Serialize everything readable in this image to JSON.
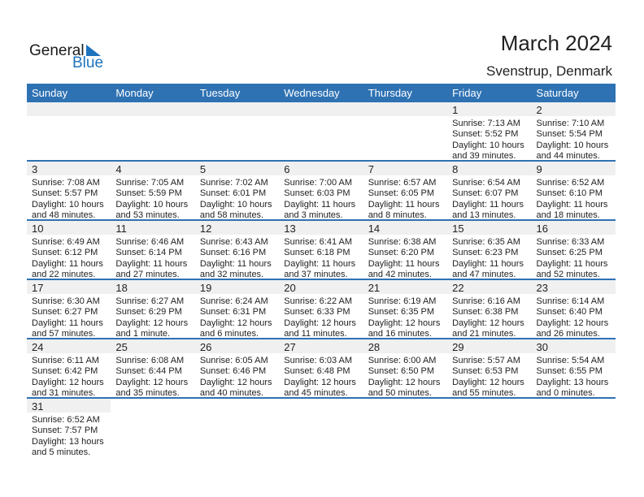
{
  "logo": {
    "general": "General",
    "blue": "Blue"
  },
  "title": "March 2024",
  "location": "Svenstrup, Denmark",
  "colors": {
    "header": "#2e72b3",
    "strip": "#f0f0f0",
    "brand": "#1e73be"
  },
  "weekdays": [
    "Sunday",
    "Monday",
    "Tuesday",
    "Wednesday",
    "Thursday",
    "Friday",
    "Saturday"
  ],
  "weeks": [
    [
      null,
      null,
      null,
      null,
      null,
      {
        "day": "1",
        "sunrise": "Sunrise: 7:13 AM",
        "sunset": "Sunset: 5:52 PM",
        "daylight1": "Daylight: 10 hours",
        "daylight2": "and 39 minutes."
      },
      {
        "day": "2",
        "sunrise": "Sunrise: 7:10 AM",
        "sunset": "Sunset: 5:54 PM",
        "daylight1": "Daylight: 10 hours",
        "daylight2": "and 44 minutes."
      }
    ],
    [
      {
        "day": "3",
        "sunrise": "Sunrise: 7:08 AM",
        "sunset": "Sunset: 5:57 PM",
        "daylight1": "Daylight: 10 hours",
        "daylight2": "and 48 minutes."
      },
      {
        "day": "4",
        "sunrise": "Sunrise: 7:05 AM",
        "sunset": "Sunset: 5:59 PM",
        "daylight1": "Daylight: 10 hours",
        "daylight2": "and 53 minutes."
      },
      {
        "day": "5",
        "sunrise": "Sunrise: 7:02 AM",
        "sunset": "Sunset: 6:01 PM",
        "daylight1": "Daylight: 10 hours",
        "daylight2": "and 58 minutes."
      },
      {
        "day": "6",
        "sunrise": "Sunrise: 7:00 AM",
        "sunset": "Sunset: 6:03 PM",
        "daylight1": "Daylight: 11 hours",
        "daylight2": "and 3 minutes."
      },
      {
        "day": "7",
        "sunrise": "Sunrise: 6:57 AM",
        "sunset": "Sunset: 6:05 PM",
        "daylight1": "Daylight: 11 hours",
        "daylight2": "and 8 minutes."
      },
      {
        "day": "8",
        "sunrise": "Sunrise: 6:54 AM",
        "sunset": "Sunset: 6:07 PM",
        "daylight1": "Daylight: 11 hours",
        "daylight2": "and 13 minutes."
      },
      {
        "day": "9",
        "sunrise": "Sunrise: 6:52 AM",
        "sunset": "Sunset: 6:10 PM",
        "daylight1": "Daylight: 11 hours",
        "daylight2": "and 18 minutes."
      }
    ],
    [
      {
        "day": "10",
        "sunrise": "Sunrise: 6:49 AM",
        "sunset": "Sunset: 6:12 PM",
        "daylight1": "Daylight: 11 hours",
        "daylight2": "and 22 minutes."
      },
      {
        "day": "11",
        "sunrise": "Sunrise: 6:46 AM",
        "sunset": "Sunset: 6:14 PM",
        "daylight1": "Daylight: 11 hours",
        "daylight2": "and 27 minutes."
      },
      {
        "day": "12",
        "sunrise": "Sunrise: 6:43 AM",
        "sunset": "Sunset: 6:16 PM",
        "daylight1": "Daylight: 11 hours",
        "daylight2": "and 32 minutes."
      },
      {
        "day": "13",
        "sunrise": "Sunrise: 6:41 AM",
        "sunset": "Sunset: 6:18 PM",
        "daylight1": "Daylight: 11 hours",
        "daylight2": "and 37 minutes."
      },
      {
        "day": "14",
        "sunrise": "Sunrise: 6:38 AM",
        "sunset": "Sunset: 6:20 PM",
        "daylight1": "Daylight: 11 hours",
        "daylight2": "and 42 minutes."
      },
      {
        "day": "15",
        "sunrise": "Sunrise: 6:35 AM",
        "sunset": "Sunset: 6:23 PM",
        "daylight1": "Daylight: 11 hours",
        "daylight2": "and 47 minutes."
      },
      {
        "day": "16",
        "sunrise": "Sunrise: 6:33 AM",
        "sunset": "Sunset: 6:25 PM",
        "daylight1": "Daylight: 11 hours",
        "daylight2": "and 52 minutes."
      }
    ],
    [
      {
        "day": "17",
        "sunrise": "Sunrise: 6:30 AM",
        "sunset": "Sunset: 6:27 PM",
        "daylight1": "Daylight: 11 hours",
        "daylight2": "and 57 minutes."
      },
      {
        "day": "18",
        "sunrise": "Sunrise: 6:27 AM",
        "sunset": "Sunset: 6:29 PM",
        "daylight1": "Daylight: 12 hours",
        "daylight2": "and 1 minute."
      },
      {
        "day": "19",
        "sunrise": "Sunrise: 6:24 AM",
        "sunset": "Sunset: 6:31 PM",
        "daylight1": "Daylight: 12 hours",
        "daylight2": "and 6 minutes."
      },
      {
        "day": "20",
        "sunrise": "Sunrise: 6:22 AM",
        "sunset": "Sunset: 6:33 PM",
        "daylight1": "Daylight: 12 hours",
        "daylight2": "and 11 minutes."
      },
      {
        "day": "21",
        "sunrise": "Sunrise: 6:19 AM",
        "sunset": "Sunset: 6:35 PM",
        "daylight1": "Daylight: 12 hours",
        "daylight2": "and 16 minutes."
      },
      {
        "day": "22",
        "sunrise": "Sunrise: 6:16 AM",
        "sunset": "Sunset: 6:38 PM",
        "daylight1": "Daylight: 12 hours",
        "daylight2": "and 21 minutes."
      },
      {
        "day": "23",
        "sunrise": "Sunrise: 6:14 AM",
        "sunset": "Sunset: 6:40 PM",
        "daylight1": "Daylight: 12 hours",
        "daylight2": "and 26 minutes."
      }
    ],
    [
      {
        "day": "24",
        "sunrise": "Sunrise: 6:11 AM",
        "sunset": "Sunset: 6:42 PM",
        "daylight1": "Daylight: 12 hours",
        "daylight2": "and 31 minutes."
      },
      {
        "day": "25",
        "sunrise": "Sunrise: 6:08 AM",
        "sunset": "Sunset: 6:44 PM",
        "daylight1": "Daylight: 12 hours",
        "daylight2": "and 35 minutes."
      },
      {
        "day": "26",
        "sunrise": "Sunrise: 6:05 AM",
        "sunset": "Sunset: 6:46 PM",
        "daylight1": "Daylight: 12 hours",
        "daylight2": "and 40 minutes."
      },
      {
        "day": "27",
        "sunrise": "Sunrise: 6:03 AM",
        "sunset": "Sunset: 6:48 PM",
        "daylight1": "Daylight: 12 hours",
        "daylight2": "and 45 minutes."
      },
      {
        "day": "28",
        "sunrise": "Sunrise: 6:00 AM",
        "sunset": "Sunset: 6:50 PM",
        "daylight1": "Daylight: 12 hours",
        "daylight2": "and 50 minutes."
      },
      {
        "day": "29",
        "sunrise": "Sunrise: 5:57 AM",
        "sunset": "Sunset: 6:53 PM",
        "daylight1": "Daylight: 12 hours",
        "daylight2": "and 55 minutes."
      },
      {
        "day": "30",
        "sunrise": "Sunrise: 5:54 AM",
        "sunset": "Sunset: 6:55 PM",
        "daylight1": "Daylight: 13 hours",
        "daylight2": "and 0 minutes."
      }
    ],
    [
      {
        "day": "31",
        "sunrise": "Sunrise: 6:52 AM",
        "sunset": "Sunset: 7:57 PM",
        "daylight1": "Daylight: 13 hours",
        "daylight2": "and 5 minutes."
      },
      null,
      null,
      null,
      null,
      null,
      null
    ]
  ]
}
